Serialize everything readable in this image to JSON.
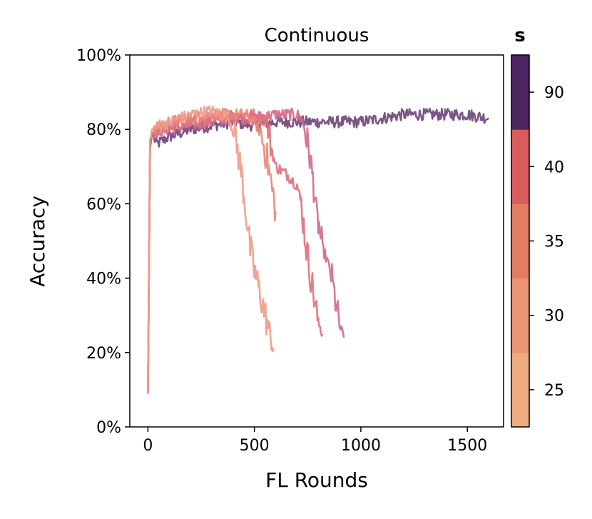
{
  "chart_data": {
    "type": "line",
    "title": "Continuous",
    "xlabel": "FL Rounds",
    "ylabel": "Accuracy",
    "xlim": [
      -85,
      1670
    ],
    "ylim": [
      0,
      100
    ],
    "xticks": [
      0,
      500,
      1000,
      1500
    ],
    "xtick_labels": [
      "0",
      "500",
      "1000",
      "1500"
    ],
    "yticks": [
      0,
      20,
      40,
      60,
      80,
      100
    ],
    "ytick_labels": [
      "0%",
      "20%",
      "40%",
      "60%",
      "80%",
      "100%"
    ],
    "grid": false,
    "legend": "none",
    "colorbar": {
      "label": "s",
      "tick_labels": [
        "25",
        "30",
        "35",
        "40",
        "90"
      ],
      "colors": [
        "#eeac80",
        "#eb9473",
        "#e47c61",
        "#d95d5c",
        "#4d2562"
      ]
    },
    "series": [
      {
        "s": 90,
        "color": "#6e4478",
        "points": [
          [
            0,
            9
          ],
          [
            10,
            75
          ],
          [
            20,
            79
          ],
          [
            40,
            76
          ],
          [
            100,
            78
          ],
          [
            200,
            80
          ],
          [
            300,
            81
          ],
          [
            400,
            82
          ],
          [
            500,
            81
          ],
          [
            600,
            82
          ],
          [
            700,
            82
          ],
          [
            800,
            82
          ],
          [
            900,
            82
          ],
          [
            1000,
            82
          ],
          [
            1100,
            83
          ],
          [
            1200,
            84
          ],
          [
            1300,
            84
          ],
          [
            1400,
            84
          ],
          [
            1500,
            84
          ],
          [
            1600,
            83
          ]
        ]
      },
      {
        "s": 40,
        "color": "#d2698a",
        "points": [
          [
            0,
            9
          ],
          [
            10,
            76
          ],
          [
            20,
            79
          ],
          [
            100,
            80
          ],
          [
            200,
            81
          ],
          [
            300,
            82
          ],
          [
            400,
            83
          ],
          [
            500,
            83
          ],
          [
            600,
            84
          ],
          [
            700,
            84
          ],
          [
            730,
            82
          ],
          [
            760,
            73
          ],
          [
            790,
            60
          ],
          [
            800,
            55
          ],
          [
            820,
            48
          ],
          [
            840,
            45
          ],
          [
            860,
            41
          ],
          [
            880,
            34
          ],
          [
            900,
            27
          ],
          [
            920,
            24
          ]
        ]
      },
      {
        "s": 35,
        "color": "#df6f79",
        "points": [
          [
            0,
            9
          ],
          [
            10,
            77
          ],
          [
            20,
            79
          ],
          [
            100,
            81
          ],
          [
            200,
            82
          ],
          [
            300,
            83
          ],
          [
            400,
            84
          ],
          [
            500,
            84
          ],
          [
            560,
            82
          ],
          [
            580,
            75
          ],
          [
            600,
            70
          ],
          [
            650,
            68
          ],
          [
            700,
            65
          ],
          [
            720,
            60
          ],
          [
            740,
            50
          ],
          [
            760,
            42
          ],
          [
            780,
            35
          ],
          [
            800,
            28
          ],
          [
            820,
            25
          ]
        ]
      },
      {
        "s": 30,
        "color": "#ea8479",
        "points": [
          [
            0,
            9
          ],
          [
            10,
            77
          ],
          [
            20,
            80
          ],
          [
            100,
            82
          ],
          [
            200,
            83
          ],
          [
            300,
            84
          ],
          [
            400,
            84
          ],
          [
            460,
            84
          ],
          [
            500,
            82
          ],
          [
            530,
            79
          ],
          [
            560,
            72
          ],
          [
            580,
            65
          ],
          [
            600,
            58
          ]
        ]
      },
      {
        "s": 25,
        "color": "#ee9b88",
        "points": [
          [
            0,
            9
          ],
          [
            10,
            77
          ],
          [
            20,
            80
          ],
          [
            100,
            82
          ],
          [
            200,
            84
          ],
          [
            300,
            85
          ],
          [
            380,
            83
          ],
          [
            410,
            78
          ],
          [
            440,
            68
          ],
          [
            460,
            58
          ],
          [
            480,
            48
          ],
          [
            500,
            42
          ],
          [
            530,
            35
          ],
          [
            560,
            28
          ],
          [
            580,
            22
          ],
          [
            590,
            21
          ]
        ]
      }
    ]
  }
}
